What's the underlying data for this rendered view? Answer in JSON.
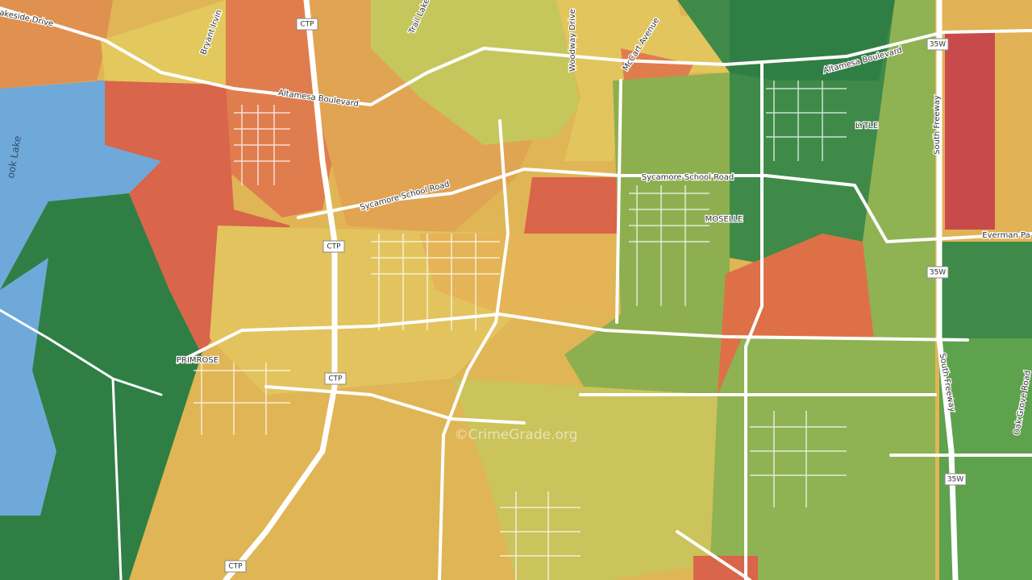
{
  "labels": [
    {
      "text": "Lakeside Drive"
    },
    {
      "text": "Bryant Irvin"
    },
    {
      "text": "CTP"
    },
    {
      "text": "Trail Lake"
    },
    {
      "text": "Woodway Drive"
    },
    {
      "text": "McCart Avenue"
    },
    {
      "text": "35W"
    },
    {
      "text": "Altamesa Boulevard"
    },
    {
      "text": "Altamesa Boulevard"
    },
    {
      "text": "LYTLE"
    },
    {
      "text": "South Freeway"
    },
    {
      "text": "Sycamore School Road"
    },
    {
      "text": "Sycamore School Road"
    },
    {
      "text": "MOSELLE"
    },
    {
      "text": "Everman Pa"
    },
    {
      "text": "CTP"
    },
    {
      "text": "35W"
    },
    {
      "text": "PRIMROSE"
    },
    {
      "text": "CTP"
    },
    {
      "text": "South Freeway"
    },
    {
      "text": "Oak Grove Road"
    },
    {
      "text": "©CrimeGrade.org"
    },
    {
      "text": "35W"
    },
    {
      "text": "CTP"
    },
    {
      "text": "ook Lake"
    }
  ]
}
